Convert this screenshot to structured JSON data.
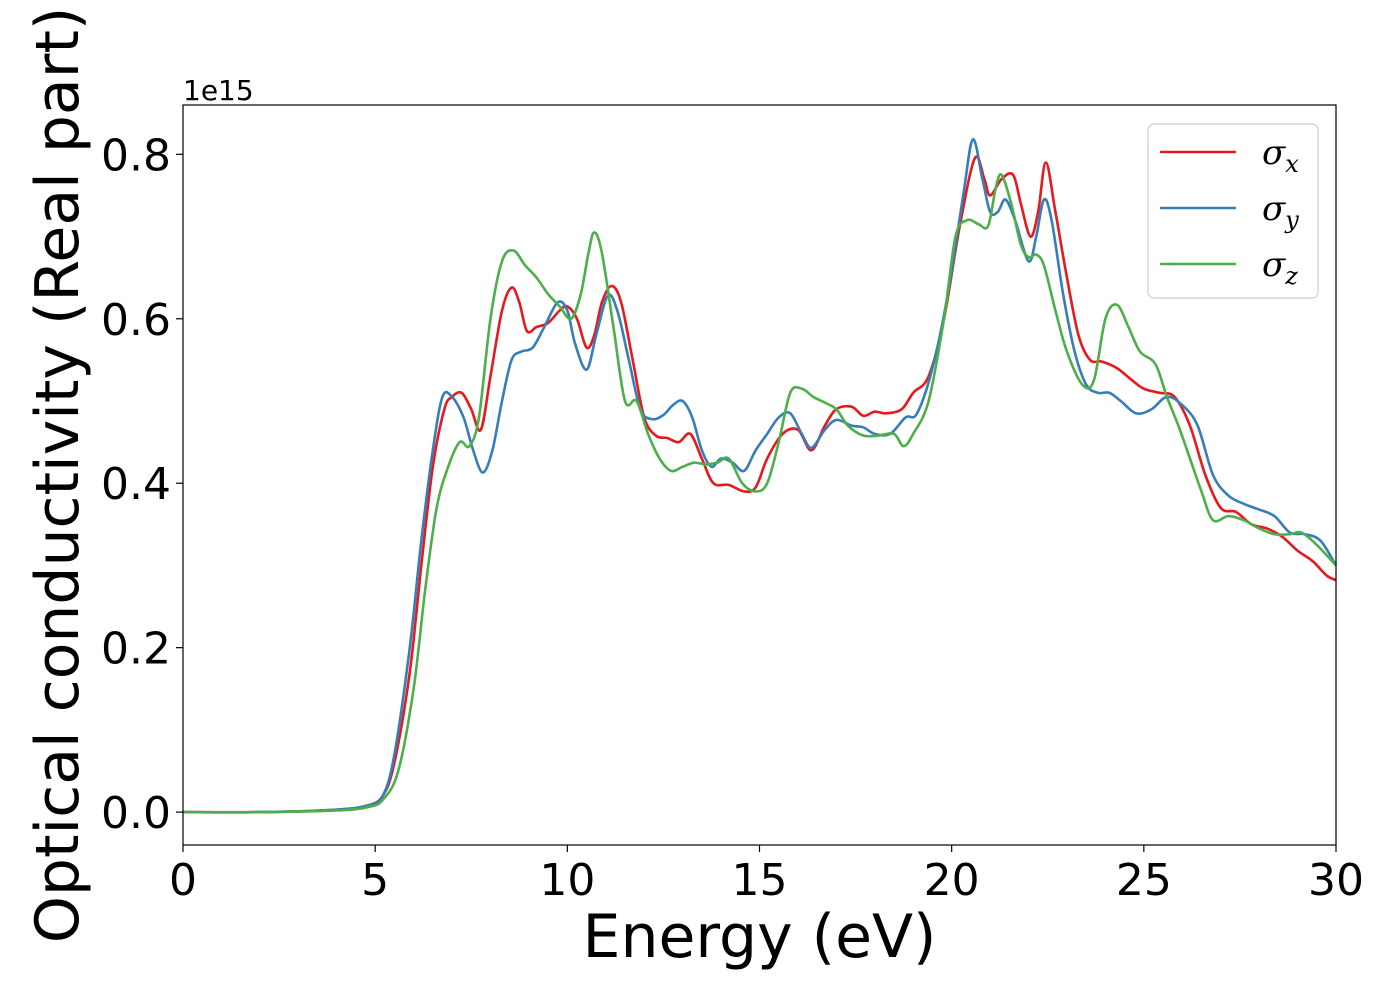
{
  "chart_data": {
    "type": "line",
    "xlabel": "Energy (eV)",
    "ylabel": "Optical conductivity (Real part)",
    "y_offset_text": "1e15",
    "xlim": [
      0,
      30
    ],
    "ylim": [
      -0.04,
      0.86
    ],
    "x_ticks": [
      0,
      5,
      10,
      15,
      20,
      25,
      30
    ],
    "x_tick_labels": [
      "0",
      "5",
      "10",
      "15",
      "20",
      "25",
      "30"
    ],
    "y_ticks": [
      0.0,
      0.2,
      0.4,
      0.6,
      0.8
    ],
    "y_tick_labels": [
      "0.0",
      "0.2",
      "0.4",
      "0.6",
      "0.8"
    ],
    "grid": false,
    "legend_position": "top-right",
    "series": [
      {
        "name": "σx",
        "symbol": "σ",
        "subscript": "x",
        "color": "#e41a1c",
        "points": [
          [
            0,
            0.0
          ],
          [
            2,
            0.0
          ],
          [
            4,
            0.003
          ],
          [
            4.8,
            0.008
          ],
          [
            5.2,
            0.02
          ],
          [
            5.5,
            0.06
          ],
          [
            5.9,
            0.17
          ],
          [
            6.2,
            0.3
          ],
          [
            6.5,
            0.42
          ],
          [
            6.8,
            0.49
          ],
          [
            7.0,
            0.505
          ],
          [
            7.25,
            0.51
          ],
          [
            7.5,
            0.49
          ],
          [
            7.75,
            0.465
          ],
          [
            8.0,
            0.53
          ],
          [
            8.3,
            0.61
          ],
          [
            8.55,
            0.638
          ],
          [
            8.75,
            0.62
          ],
          [
            8.95,
            0.585
          ],
          [
            9.2,
            0.59
          ],
          [
            9.5,
            0.595
          ],
          [
            9.8,
            0.61
          ],
          [
            10.0,
            0.615
          ],
          [
            10.25,
            0.6
          ],
          [
            10.5,
            0.565
          ],
          [
            10.7,
            0.58
          ],
          [
            10.9,
            0.62
          ],
          [
            11.15,
            0.64
          ],
          [
            11.4,
            0.62
          ],
          [
            11.7,
            0.55
          ],
          [
            12.0,
            0.48
          ],
          [
            12.3,
            0.458
          ],
          [
            12.6,
            0.455
          ],
          [
            12.9,
            0.45
          ],
          [
            13.2,
            0.46
          ],
          [
            13.5,
            0.43
          ],
          [
            13.8,
            0.4
          ],
          [
            14.2,
            0.398
          ],
          [
            14.6,
            0.39
          ],
          [
            14.9,
            0.395
          ],
          [
            15.2,
            0.43
          ],
          [
            15.6,
            0.46
          ],
          [
            16.0,
            0.465
          ],
          [
            16.35,
            0.44
          ],
          [
            16.7,
            0.47
          ],
          [
            17.0,
            0.49
          ],
          [
            17.4,
            0.493
          ],
          [
            17.7,
            0.482
          ],
          [
            18.0,
            0.487
          ],
          [
            18.3,
            0.485
          ],
          [
            18.7,
            0.49
          ],
          [
            19.0,
            0.51
          ],
          [
            19.4,
            0.53
          ],
          [
            19.8,
            0.6
          ],
          [
            20.2,
            0.71
          ],
          [
            20.6,
            0.795
          ],
          [
            20.85,
            0.77
          ],
          [
            21.0,
            0.75
          ],
          [
            21.3,
            0.77
          ],
          [
            21.6,
            0.775
          ],
          [
            21.8,
            0.74
          ],
          [
            22.05,
            0.7
          ],
          [
            22.25,
            0.73
          ],
          [
            22.45,
            0.79
          ],
          [
            22.7,
            0.73
          ],
          [
            23.0,
            0.65
          ],
          [
            23.3,
            0.58
          ],
          [
            23.6,
            0.55
          ],
          [
            23.9,
            0.548
          ],
          [
            24.3,
            0.54
          ],
          [
            24.7,
            0.525
          ],
          [
            25.0,
            0.515
          ],
          [
            25.4,
            0.51
          ],
          [
            25.8,
            0.505
          ],
          [
            26.2,
            0.47
          ],
          [
            26.6,
            0.41
          ],
          [
            27.0,
            0.37
          ],
          [
            27.4,
            0.365
          ],
          [
            27.8,
            0.35
          ],
          [
            28.2,
            0.345
          ],
          [
            28.6,
            0.335
          ],
          [
            29.0,
            0.318
          ],
          [
            29.4,
            0.305
          ],
          [
            29.75,
            0.288
          ],
          [
            30,
            0.282
          ]
        ]
      },
      {
        "name": "σy",
        "symbol": "σ",
        "subscript": "y",
        "color": "#377eb8",
        "points": [
          [
            0,
            0.0
          ],
          [
            2,
            0.0
          ],
          [
            4,
            0.003
          ],
          [
            4.8,
            0.008
          ],
          [
            5.2,
            0.02
          ],
          [
            5.5,
            0.07
          ],
          [
            5.9,
            0.2
          ],
          [
            6.2,
            0.33
          ],
          [
            6.5,
            0.44
          ],
          [
            6.75,
            0.505
          ],
          [
            7.0,
            0.505
          ],
          [
            7.3,
            0.48
          ],
          [
            7.55,
            0.44
          ],
          [
            7.8,
            0.413
          ],
          [
            8.05,
            0.44
          ],
          [
            8.3,
            0.5
          ],
          [
            8.55,
            0.55
          ],
          [
            8.8,
            0.56
          ],
          [
            9.1,
            0.565
          ],
          [
            9.4,
            0.59
          ],
          [
            9.75,
            0.62
          ],
          [
            10.0,
            0.61
          ],
          [
            10.2,
            0.57
          ],
          [
            10.5,
            0.538
          ],
          [
            10.75,
            0.58
          ],
          [
            11.05,
            0.628
          ],
          [
            11.3,
            0.61
          ],
          [
            11.6,
            0.55
          ],
          [
            11.9,
            0.49
          ],
          [
            12.2,
            0.478
          ],
          [
            12.5,
            0.483
          ],
          [
            12.75,
            0.495
          ],
          [
            13.0,
            0.5
          ],
          [
            13.25,
            0.48
          ],
          [
            13.5,
            0.44
          ],
          [
            13.75,
            0.42
          ],
          [
            14.0,
            0.43
          ],
          [
            14.3,
            0.425
          ],
          [
            14.6,
            0.415
          ],
          [
            14.9,
            0.44
          ],
          [
            15.2,
            0.46
          ],
          [
            15.5,
            0.48
          ],
          [
            15.8,
            0.485
          ],
          [
            16.1,
            0.46
          ],
          [
            16.35,
            0.443
          ],
          [
            16.7,
            0.465
          ],
          [
            17.0,
            0.477
          ],
          [
            17.4,
            0.47
          ],
          [
            17.7,
            0.468
          ],
          [
            18.0,
            0.46
          ],
          [
            18.4,
            0.46
          ],
          [
            18.8,
            0.48
          ],
          [
            19.1,
            0.485
          ],
          [
            19.5,
            0.54
          ],
          [
            19.9,
            0.63
          ],
          [
            20.3,
            0.75
          ],
          [
            20.55,
            0.818
          ],
          [
            20.8,
            0.77
          ],
          [
            21.0,
            0.73
          ],
          [
            21.2,
            0.73
          ],
          [
            21.4,
            0.745
          ],
          [
            21.65,
            0.72
          ],
          [
            22.0,
            0.67
          ],
          [
            22.2,
            0.7
          ],
          [
            22.4,
            0.745
          ],
          [
            22.6,
            0.72
          ],
          [
            22.9,
            0.63
          ],
          [
            23.2,
            0.56
          ],
          [
            23.5,
            0.52
          ],
          [
            23.8,
            0.51
          ],
          [
            24.1,
            0.51
          ],
          [
            24.4,
            0.5
          ],
          [
            24.8,
            0.485
          ],
          [
            25.2,
            0.49
          ],
          [
            25.6,
            0.505
          ],
          [
            26.0,
            0.495
          ],
          [
            26.4,
            0.47
          ],
          [
            26.8,
            0.41
          ],
          [
            27.2,
            0.385
          ],
          [
            27.6,
            0.375
          ],
          [
            28.0,
            0.368
          ],
          [
            28.4,
            0.36
          ],
          [
            28.8,
            0.34
          ],
          [
            29.2,
            0.338
          ],
          [
            29.6,
            0.33
          ],
          [
            30,
            0.3
          ]
        ]
      },
      {
        "name": "σz",
        "symbol": "σ",
        "subscript": "z",
        "color": "#4daf4a",
        "points": [
          [
            0,
            0.0
          ],
          [
            2,
            0.0
          ],
          [
            4,
            0.002
          ],
          [
            4.8,
            0.006
          ],
          [
            5.2,
            0.015
          ],
          [
            5.6,
            0.05
          ],
          [
            6.0,
            0.15
          ],
          [
            6.3,
            0.27
          ],
          [
            6.6,
            0.37
          ],
          [
            6.9,
            0.42
          ],
          [
            7.2,
            0.45
          ],
          [
            7.45,
            0.445
          ],
          [
            7.7,
            0.48
          ],
          [
            8.0,
            0.6
          ],
          [
            8.3,
            0.67
          ],
          [
            8.6,
            0.683
          ],
          [
            8.9,
            0.665
          ],
          [
            9.2,
            0.65
          ],
          [
            9.5,
            0.63
          ],
          [
            9.8,
            0.615
          ],
          [
            10.1,
            0.6
          ],
          [
            10.35,
            0.63
          ],
          [
            10.55,
            0.68
          ],
          [
            10.7,
            0.705
          ],
          [
            10.9,
            0.68
          ],
          [
            11.2,
            0.59
          ],
          [
            11.5,
            0.5
          ],
          [
            11.8,
            0.5
          ],
          [
            12.1,
            0.46
          ],
          [
            12.4,
            0.43
          ],
          [
            12.7,
            0.415
          ],
          [
            13.0,
            0.42
          ],
          [
            13.3,
            0.425
          ],
          [
            13.6,
            0.423
          ],
          [
            13.9,
            0.425
          ],
          [
            14.2,
            0.43
          ],
          [
            14.55,
            0.4
          ],
          [
            14.9,
            0.39
          ],
          [
            15.2,
            0.4
          ],
          [
            15.5,
            0.45
          ],
          [
            15.8,
            0.51
          ],
          [
            16.1,
            0.515
          ],
          [
            16.4,
            0.505
          ],
          [
            16.7,
            0.498
          ],
          [
            17.0,
            0.49
          ],
          [
            17.3,
            0.47
          ],
          [
            17.7,
            0.458
          ],
          [
            18.1,
            0.458
          ],
          [
            18.5,
            0.46
          ],
          [
            18.75,
            0.445
          ],
          [
            19.0,
            0.46
          ],
          [
            19.4,
            0.5
          ],
          [
            19.8,
            0.6
          ],
          [
            20.1,
            0.7
          ],
          [
            20.4,
            0.72
          ],
          [
            20.7,
            0.715
          ],
          [
            20.95,
            0.713
          ],
          [
            21.15,
            0.76
          ],
          [
            21.3,
            0.775
          ],
          [
            21.55,
            0.74
          ],
          [
            21.8,
            0.69
          ],
          [
            22.0,
            0.675
          ],
          [
            22.2,
            0.678
          ],
          [
            22.4,
            0.665
          ],
          [
            22.7,
            0.61
          ],
          [
            23.0,
            0.56
          ],
          [
            23.4,
            0.52
          ],
          [
            23.7,
            0.525
          ],
          [
            24.0,
            0.6
          ],
          [
            24.3,
            0.617
          ],
          [
            24.6,
            0.59
          ],
          [
            24.9,
            0.56
          ],
          [
            25.3,
            0.545
          ],
          [
            25.6,
            0.505
          ],
          [
            25.9,
            0.47
          ],
          [
            26.2,
            0.43
          ],
          [
            26.5,
            0.39
          ],
          [
            26.8,
            0.355
          ],
          [
            27.2,
            0.36
          ],
          [
            27.6,
            0.355
          ],
          [
            28.0,
            0.345
          ],
          [
            28.4,
            0.338
          ],
          [
            28.8,
            0.338
          ],
          [
            29.1,
            0.34
          ],
          [
            29.5,
            0.325
          ],
          [
            30,
            0.3
          ]
        ]
      }
    ]
  }
}
